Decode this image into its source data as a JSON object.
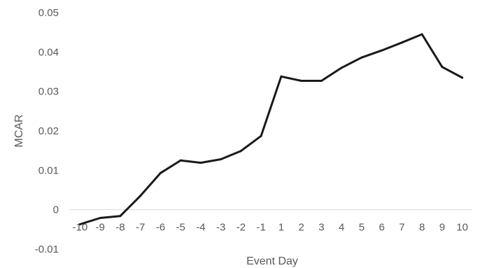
{
  "chart_data": {
    "type": "line",
    "title": "",
    "xlabel": "Event Day",
    "ylabel": "MCAR",
    "x": [
      "-10",
      "-9",
      "-8",
      "-7",
      "-6",
      "-5",
      "-4",
      "-3",
      "-2",
      "-1",
      "1",
      "2",
      "3",
      "4",
      "5",
      "6",
      "7",
      "8",
      "9",
      "10"
    ],
    "series": [
      {
        "color": "#1a1a1a",
        "values": [
          -0.0037,
          -0.0021,
          -0.0016,
          0.0035,
          0.0093,
          0.0125,
          0.0119,
          0.0128,
          0.0149,
          0.0187,
          0.0338,
          0.0327,
          0.0327,
          0.036,
          0.0386,
          0.0404,
          0.0424,
          0.0445,
          0.0362,
          0.0335
        ]
      }
    ],
    "ylim": [
      -0.01,
      0.05
    ],
    "yticks": [
      "-0.01",
      "0",
      "0.01",
      "0.02",
      "0.03",
      "0.04",
      "0.05"
    ],
    "grid": false,
    "legend": "none"
  }
}
